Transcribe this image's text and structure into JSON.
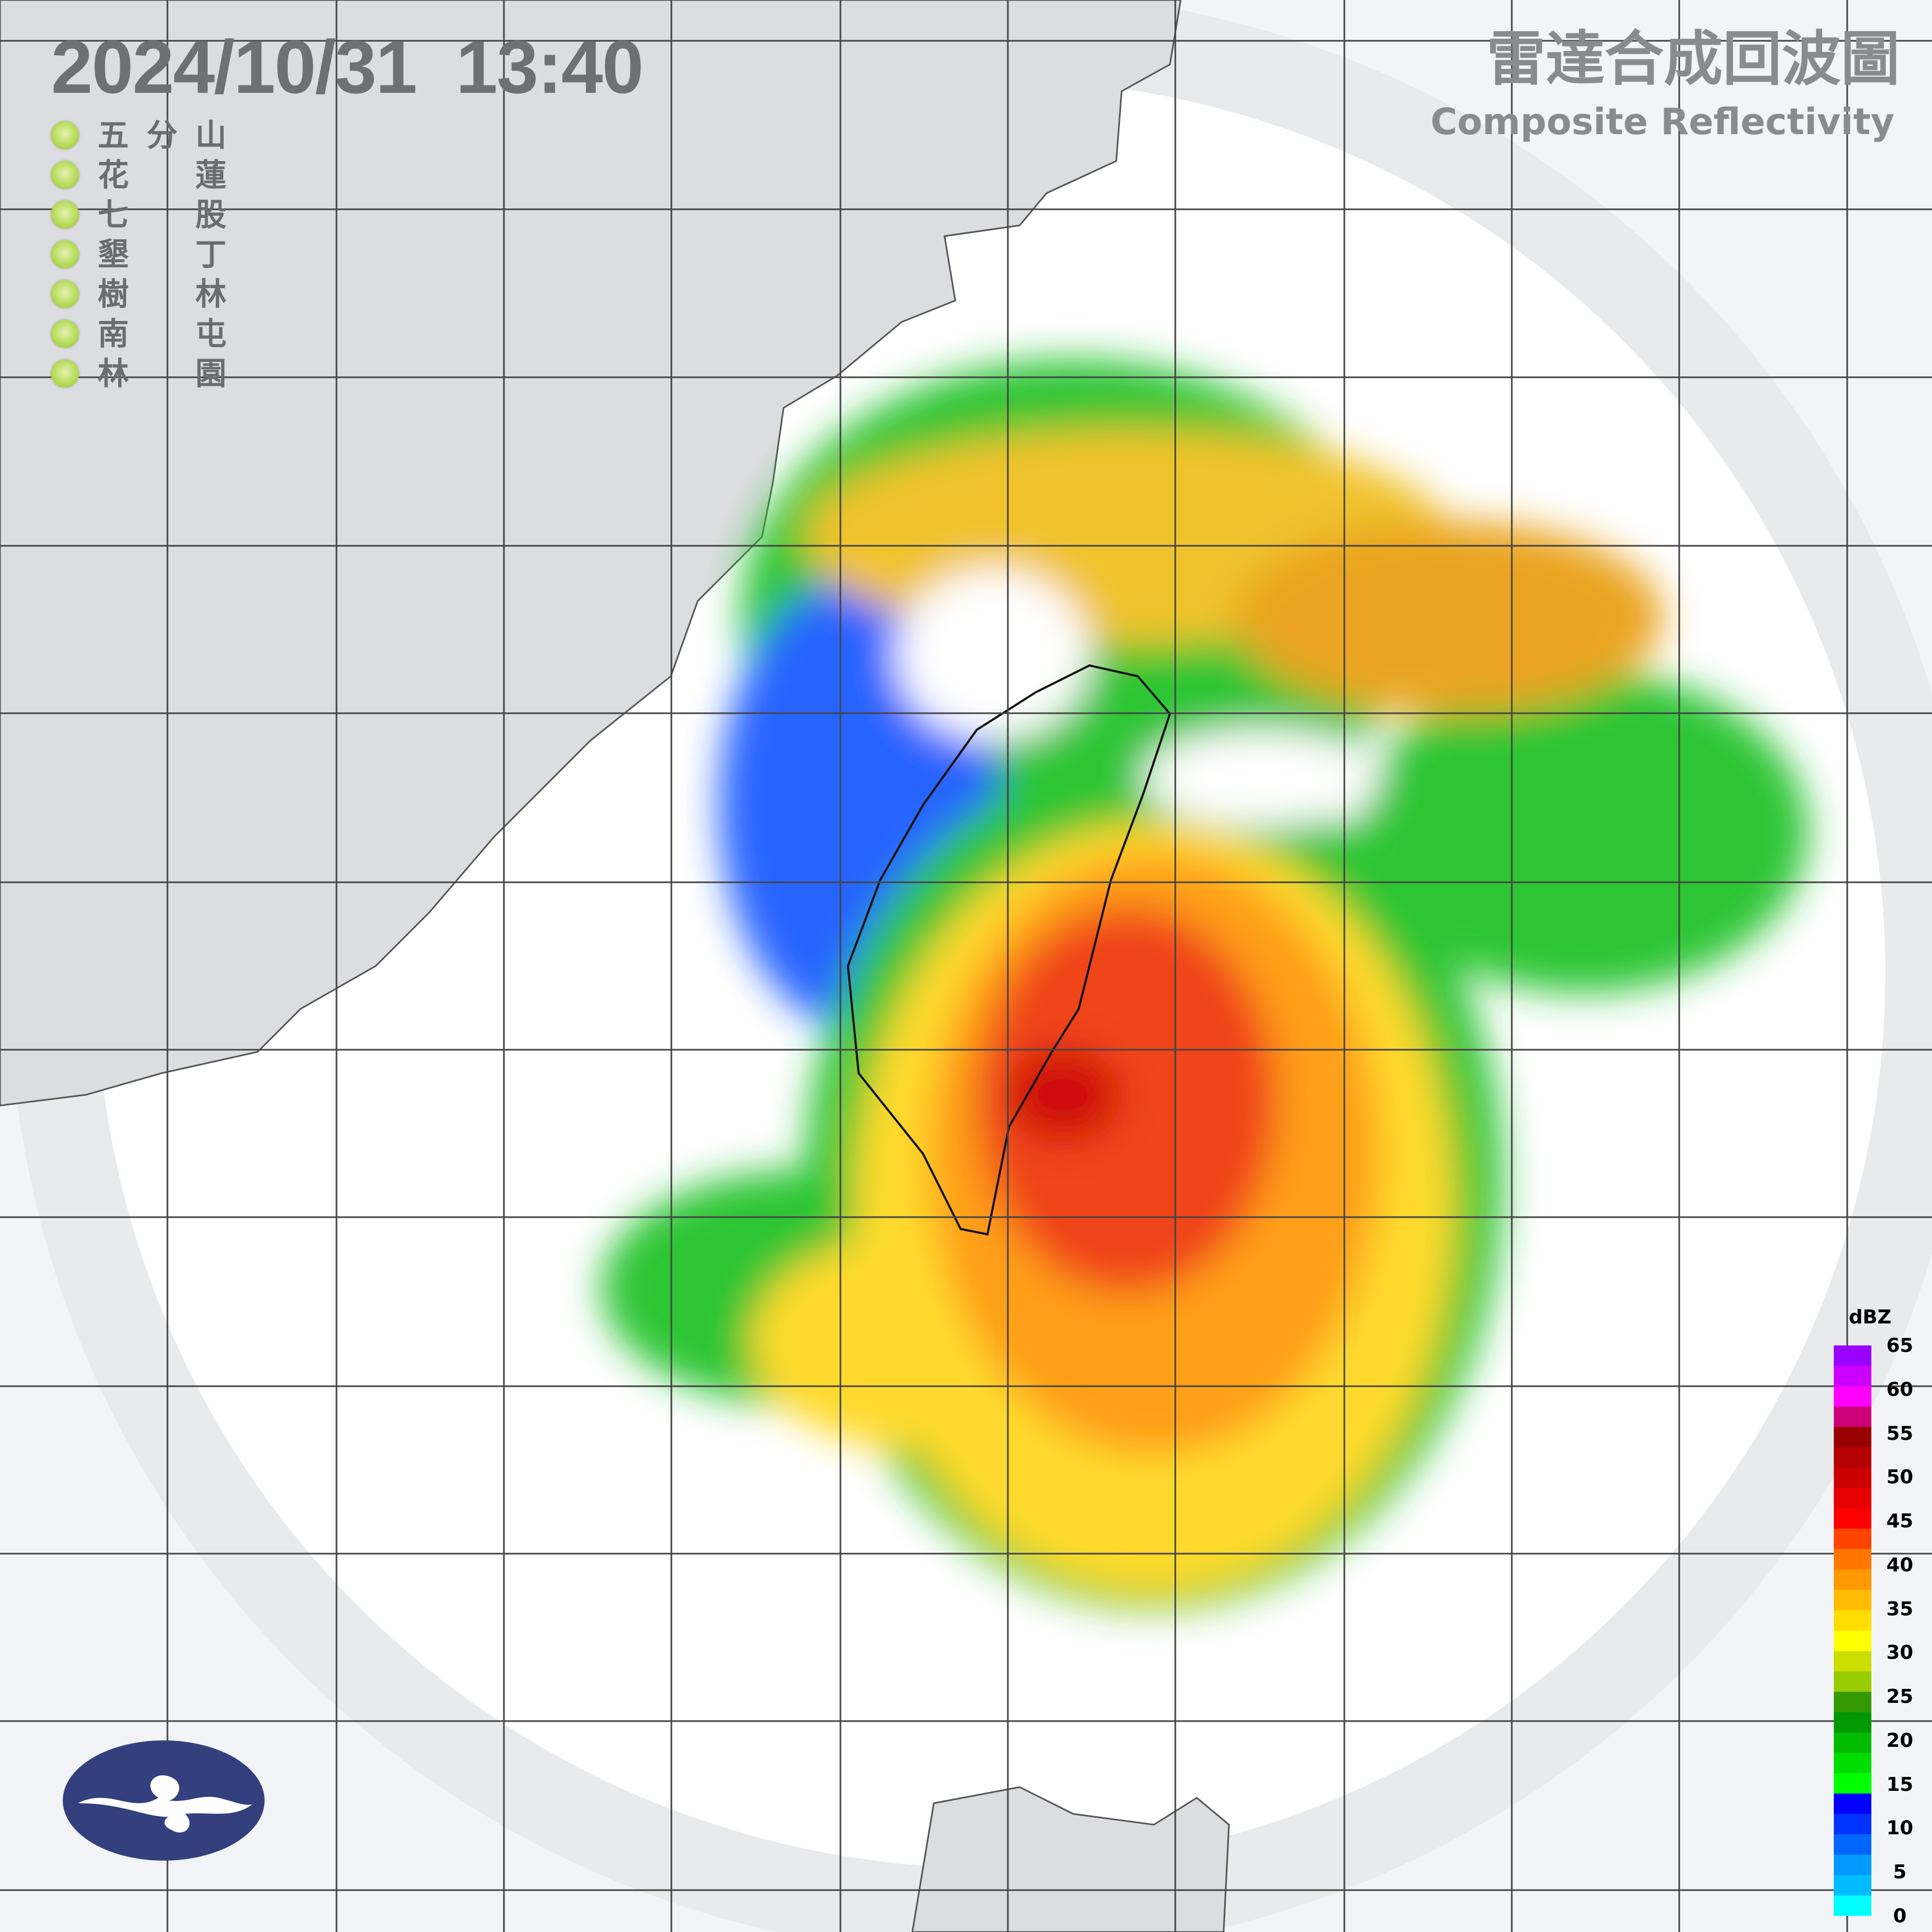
{
  "header": {
    "timestamp": "2024/10/31  13:40",
    "title_zh": "雷達合成回波圖",
    "title_en": "Composite Reflectivity"
  },
  "stations": [
    {
      "a": "五",
      "b": "分",
      "c": "山"
    },
    {
      "a": "花",
      "b": "",
      "c": "蓮"
    },
    {
      "a": "七",
      "b": "",
      "c": "股"
    },
    {
      "a": "墾",
      "b": "",
      "c": "丁"
    },
    {
      "a": "樹",
      "b": "",
      "c": "林"
    },
    {
      "a": "南",
      "b": "",
      "c": "屯"
    },
    {
      "a": "林",
      "b": "",
      "c": "園"
    }
  ],
  "station_status_color": "#9ccc3a",
  "colorbar": {
    "unit": "dBZ",
    "labels": [
      "65",
      "60",
      "55",
      "50",
      "45",
      "40",
      "35",
      "30",
      "25",
      "20",
      "15",
      "10",
      "5",
      "0"
    ],
    "colors": [
      "#9900ff",
      "#cc00ff",
      "#ff00ff",
      "#cc0077",
      "#990000",
      "#b30000",
      "#cc0000",
      "#e60000",
      "#ff0000",
      "#ff4400",
      "#ff7700",
      "#ff9900",
      "#ffbb00",
      "#ffdd00",
      "#ffff00",
      "#ccdd00",
      "#99cc00",
      "#339900",
      "#009900",
      "#00bb00",
      "#00dd00",
      "#00ff00",
      "#0000ff",
      "#0033ff",
      "#0066ff",
      "#0099ff",
      "#00bbff",
      "#00ffff"
    ]
  },
  "logo": "central-weather-administration-logo"
}
